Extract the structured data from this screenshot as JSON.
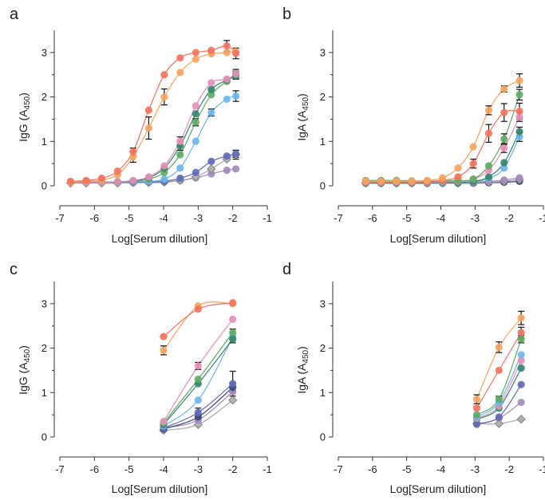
{
  "colors": {
    "A": "#f26d55",
    "B": "#f6a05a",
    "C": "#e58ab6",
    "D": "#58a85d",
    "E": "#2b7f66",
    "F": "#64b3ea",
    "G": "#5863b2",
    "H": "#9d86b6",
    "I": "#a3a3a3",
    "J": "#2d3f6d"
  },
  "chart_data": [
    {
      "panel": "a",
      "type": "scatter",
      "xlabel": "Log[Serum dilution]",
      "ylabel_main": "IgG (A",
      "ylabel_sub": "450",
      "ylabel_end": ")",
      "xlim": [
        -7,
        -1
      ],
      "ylim": [
        0,
        3.5
      ],
      "xticks": [
        "-7",
        "-6",
        "-5",
        "-4",
        "-3",
        "-2",
        "-1"
      ],
      "yticks": [
        "0",
        "1",
        "2",
        "3"
      ],
      "x": [
        -6.69,
        -6.24,
        -5.79,
        -5.33,
        -4.88,
        -4.43,
        -3.98,
        -3.52,
        -3.07,
        -2.62,
        -2.17,
        -1.91
      ],
      "series": [
        {
          "color": "A",
          "marker": "circle",
          "values": [
            0.1,
            0.12,
            0.17,
            0.33,
            0.77,
            1.7,
            2.5,
            2.88,
            3.0,
            3.05,
            3.15,
            2.98
          ],
          "err": [
            0,
            0,
            0,
            0,
            0.08,
            0,
            0,
            0,
            0,
            0,
            0.12,
            0.12
          ]
        },
        {
          "color": "B",
          "marker": "circle",
          "values": [
            0.08,
            0.1,
            0.13,
            0.25,
            0.65,
            1.3,
            2.0,
            2.55,
            2.85,
            2.97,
            3.0,
            3.02
          ],
          "err": [
            0,
            0,
            0,
            0,
            0.12,
            0.25,
            0.18,
            0,
            0,
            0,
            0,
            0
          ]
        },
        {
          "color": "C",
          "marker": "circle",
          "values": [
            0.08,
            0.08,
            0.08,
            0.09,
            0.12,
            0.2,
            0.45,
            1.0,
            1.8,
            2.32,
            2.4,
            2.52
          ],
          "err": [
            0,
            0,
            0,
            0,
            0,
            0,
            0,
            0.1,
            0,
            0,
            0,
            0.1
          ]
        },
        {
          "color": "E",
          "marker": "circle",
          "values": [
            0.08,
            0.08,
            0.08,
            0.09,
            0.11,
            0.18,
            0.4,
            0.9,
            1.62,
            2.17,
            2.38,
            2.5
          ],
          "err": [
            0,
            0,
            0,
            0,
            0,
            0,
            0,
            0.1,
            0,
            0,
            0,
            0.08
          ]
        },
        {
          "color": "D",
          "marker": "circle",
          "values": [
            0.08,
            0.08,
            0.08,
            0.09,
            0.1,
            0.15,
            0.3,
            0.7,
            1.43,
            2.05,
            2.35,
            2.48
          ],
          "err": [
            0,
            0,
            0,
            0,
            0,
            0,
            0,
            0,
            0.08,
            0,
            0,
            0.08
          ]
        },
        {
          "color": "F",
          "marker": "circle",
          "values": [
            0.08,
            0.08,
            0.08,
            0.08,
            0.09,
            0.1,
            0.15,
            0.4,
            1.0,
            1.65,
            1.95,
            2.02
          ],
          "err": [
            0,
            0,
            0,
            0,
            0,
            0,
            0,
            0,
            0,
            0.08,
            0,
            0.12
          ]
        },
        {
          "color": "G",
          "marker": "circle",
          "values": [
            0.08,
            0.08,
            0.08,
            0.08,
            0.08,
            0.09,
            0.1,
            0.17,
            0.3,
            0.55,
            0.67,
            0.72
          ],
          "err": [
            0,
            0,
            0,
            0,
            0,
            0,
            0,
            0,
            0,
            0,
            0,
            0.08
          ]
        },
        {
          "color": "I",
          "marker": "diamond",
          "values": [
            0.06,
            0.06,
            0.06,
            0.06,
            0.07,
            0.07,
            0.08,
            0.12,
            0.2,
            0.38,
            0.6,
            0.7
          ],
          "err": [
            0,
            0,
            0,
            0,
            0,
            0,
            0,
            0,
            0,
            0,
            0,
            0.1
          ]
        },
        {
          "color": "H",
          "marker": "circle",
          "values": [
            0.07,
            0.07,
            0.07,
            0.07,
            0.07,
            0.08,
            0.09,
            0.12,
            0.18,
            0.27,
            0.35,
            0.38
          ],
          "err": [
            0,
            0,
            0,
            0,
            0,
            0,
            0,
            0,
            0,
            0,
            0,
            0
          ]
        }
      ]
    },
    {
      "panel": "b",
      "type": "scatter",
      "xlabel": "Log[Serum dilution]",
      "ylabel_main": "IgA (A",
      "ylabel_sub": "450",
      "ylabel_end": ")",
      "xlim": [
        -7,
        -1
      ],
      "ylim": [
        0,
        3.5
      ],
      "xticks": [
        "-7",
        "-6",
        "-5",
        "-4",
        "-3",
        "-2",
        "-1"
      ],
      "yticks": [
        "0",
        "1",
        "2",
        "3"
      ],
      "x": [
        -6.2,
        -5.75,
        -5.3,
        -4.85,
        -4.4,
        -3.95,
        -3.5,
        -3.05,
        -2.6,
        -2.15,
        -1.7
      ],
      "series": [
        {
          "color": "B",
          "marker": "circle",
          "values": [
            0.1,
            0.1,
            0.1,
            0.1,
            0.12,
            0.18,
            0.4,
            0.88,
            1.7,
            2.18,
            2.37
          ],
          "err": [
            0,
            0,
            0,
            0,
            0,
            0,
            0,
            0,
            0.1,
            0.07,
            0.15
          ]
        },
        {
          "color": "A",
          "marker": "circle",
          "values": [
            0.08,
            0.08,
            0.08,
            0.08,
            0.09,
            0.12,
            0.2,
            0.5,
            1.18,
            1.65,
            1.68
          ],
          "err": [
            0,
            0,
            0,
            0,
            0,
            0,
            0,
            0.1,
            0.2,
            0.2,
            0.18
          ]
        },
        {
          "color": "D",
          "marker": "circle",
          "values": [
            0.12,
            0.12,
            0.12,
            0.11,
            0.11,
            0.11,
            0.12,
            0.15,
            0.45,
            1.05,
            2.05
          ],
          "err": [
            0,
            0,
            0,
            0,
            0,
            0,
            0,
            0,
            0,
            0.12,
            0.12
          ]
        },
        {
          "color": "C",
          "marker": "circle",
          "values": [
            0.08,
            0.08,
            0.08,
            0.08,
            0.08,
            0.09,
            0.1,
            0.15,
            0.35,
            0.85,
            1.55
          ],
          "err": [
            0,
            0,
            0,
            0,
            0,
            0,
            0,
            0,
            0,
            0.1,
            0.1
          ]
        },
        {
          "color": "E",
          "marker": "circle",
          "values": [
            0.06,
            0.06,
            0.06,
            0.06,
            0.06,
            0.07,
            0.07,
            0.1,
            0.2,
            0.52,
            1.22
          ],
          "err": [
            0,
            0,
            0,
            0,
            0,
            0,
            0,
            0,
            0,
            0,
            0.1
          ]
        },
        {
          "color": "F",
          "marker": "circle",
          "values": [
            0.06,
            0.06,
            0.06,
            0.06,
            0.06,
            0.06,
            0.07,
            0.09,
            0.17,
            0.4,
            1.1
          ],
          "err": [
            0,
            0,
            0,
            0,
            0,
            0,
            0,
            0,
            0,
            0,
            0.1
          ]
        },
        {
          "color": "H",
          "marker": "circle",
          "values": [
            0.08,
            0.08,
            0.08,
            0.08,
            0.08,
            0.08,
            0.08,
            0.09,
            0.1,
            0.13,
            0.18
          ],
          "err": [
            0,
            0,
            0,
            0,
            0,
            0,
            0,
            0,
            0,
            0,
            0
          ]
        },
        {
          "color": "I",
          "marker": "diamond",
          "values": [
            0.06,
            0.06,
            0.06,
            0.06,
            0.06,
            0.06,
            0.06,
            0.07,
            0.08,
            0.1,
            0.14
          ],
          "err": [
            0,
            0,
            0,
            0,
            0,
            0,
            0,
            0,
            0,
            0,
            0
          ]
        },
        {
          "color": "J",
          "marker": "circle",
          "values": [
            0.06,
            0.06,
            0.06,
            0.06,
            0.06,
            0.06,
            0.06,
            0.06,
            0.07,
            0.08,
            0.1
          ],
          "err": [
            0,
            0,
            0,
            0,
            0,
            0,
            0,
            0,
            0,
            0,
            0
          ]
        }
      ]
    },
    {
      "panel": "c",
      "type": "scatter",
      "xlabel": "Log[Serum dilution]",
      "ylabel_main": "IgG (A",
      "ylabel_sub": "450",
      "ylabel_end": ")",
      "xlim": [
        -7,
        -1
      ],
      "ylim": [
        0,
        3.5
      ],
      "xticks": [
        "-7",
        "-6",
        "-5",
        "-4",
        "-3",
        "-2",
        "-1"
      ],
      "yticks": [
        "0",
        "1",
        "2",
        "3"
      ],
      "x": [
        -4.0,
        -3.0,
        -2.0
      ],
      "series": [
        {
          "color": "A",
          "marker": "circle",
          "values": [
            2.26,
            2.88,
            3.02
          ],
          "err": [
            0,
            0,
            0
          ]
        },
        {
          "color": "B",
          "marker": "circle",
          "values": [
            1.95,
            2.95,
            3.0
          ],
          "err": [
            0.1,
            0,
            0
          ]
        },
        {
          "color": "C",
          "marker": "circle",
          "values": [
            0.35,
            1.6,
            2.65
          ],
          "err": [
            0,
            0.08,
            0
          ]
        },
        {
          "color": "D",
          "marker": "circle",
          "values": [
            0.32,
            1.3,
            2.35
          ],
          "err": [
            0,
            0,
            0.08
          ]
        },
        {
          "color": "E",
          "marker": "circle",
          "values": [
            0.28,
            1.2,
            2.2
          ],
          "err": [
            0,
            0,
            0.08
          ]
        },
        {
          "color": "F",
          "marker": "circle",
          "values": [
            0.25,
            0.83,
            2.25
          ],
          "err": [
            0,
            0,
            0
          ]
        },
        {
          "color": "G",
          "marker": "circle",
          "values": [
            0.2,
            0.55,
            1.2
          ],
          "err": [
            0,
            0.1,
            0.28
          ]
        },
        {
          "color": "J",
          "marker": "circle",
          "values": [
            0.18,
            0.45,
            1.12
          ],
          "err": [
            0,
            0,
            0.1
          ]
        },
        {
          "color": "H",
          "marker": "circle",
          "values": [
            0.2,
            0.38,
            1.02
          ],
          "err": [
            0,
            0,
            0
          ]
        },
        {
          "color": "I",
          "marker": "diamond",
          "values": [
            0.15,
            0.28,
            0.83
          ],
          "err": [
            0,
            0,
            0
          ]
        }
      ]
    },
    {
      "panel": "d",
      "type": "scatter",
      "xlabel": "Log[Serum dilution]",
      "ylabel_main": "IgA (A",
      "ylabel_sub": "450",
      "ylabel_end": ")",
      "xlim": [
        -7,
        -1
      ],
      "ylim": [
        0,
        3.5
      ],
      "xticks": [
        "-7",
        "-6",
        "-5",
        "-4",
        "-3",
        "-2",
        "-1"
      ],
      "yticks": [
        "0",
        "1",
        "2",
        "3"
      ],
      "x": [
        -2.95,
        -2.3,
        -1.65
      ],
      "series": [
        {
          "color": "B",
          "marker": "circle",
          "values": [
            0.85,
            2.02,
            2.68
          ],
          "err": [
            0.1,
            0.12,
            0.15
          ]
        },
        {
          "color": "A",
          "marker": "circle",
          "values": [
            0.65,
            1.5,
            2.35
          ],
          "err": [
            0,
            0,
            0.12
          ]
        },
        {
          "color": "D",
          "marker": "circle",
          "values": [
            0.5,
            0.85,
            2.2
          ],
          "err": [
            0,
            0.07,
            0.08
          ]
        },
        {
          "color": "F",
          "marker": "circle",
          "values": [
            0.45,
            0.78,
            1.85
          ],
          "err": [
            0,
            0,
            0
          ]
        },
        {
          "color": "C",
          "marker": "circle",
          "values": [
            0.42,
            0.7,
            1.72
          ],
          "err": [
            0,
            0,
            0
          ]
        },
        {
          "color": "E",
          "marker": "circle",
          "values": [
            0.4,
            0.65,
            1.55
          ],
          "err": [
            0,
            0,
            0
          ]
        },
        {
          "color": "G",
          "marker": "circle",
          "values": [
            0.3,
            0.45,
            1.18
          ],
          "err": [
            0,
            0,
            0
          ]
        },
        {
          "color": "H",
          "marker": "circle",
          "values": [
            0.28,
            0.42,
            0.78
          ],
          "err": [
            0,
            0,
            0
          ]
        },
        {
          "color": "I",
          "marker": "diamond",
          "values": [
            0.3,
            0.3,
            0.4
          ],
          "err": [
            0,
            0,
            0
          ]
        }
      ]
    }
  ]
}
